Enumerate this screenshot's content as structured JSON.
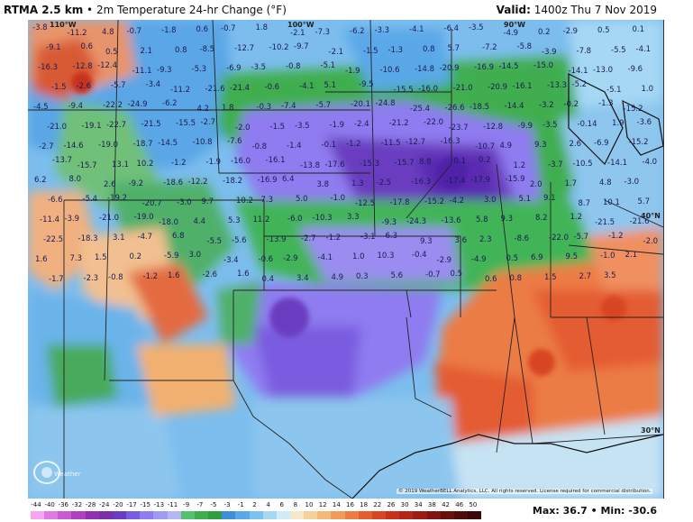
{
  "header": {
    "product": "RTMA 2.5 km",
    "separator": " • ",
    "field": "2m Temperature 24-hr Change (°F)",
    "valid_label": "Valid:",
    "valid_time": "1400z Thu 7 Nov 2019"
  },
  "footer": {
    "copyright": "© 2019 WeatherBELL Analytics, LLC. All rights reserved. License required for commercial distribution.",
    "max_label": "Max:",
    "max_value": "36.7",
    "min_label": "Min:",
    "min_value": "-30.6",
    "logo_text": "WeatherBELL"
  },
  "scale": {
    "ticks": [
      "-44",
      "-40",
      "-36",
      "-32",
      "-28",
      "-24",
      "-20",
      "-17",
      "-15",
      "-13",
      "-11",
      "-9",
      "-7",
      "-5",
      "-3",
      "-1",
      "2",
      "4",
      "6",
      "8",
      "10",
      "12",
      "14",
      "16",
      "18",
      "22",
      "26",
      "30",
      "34",
      "38",
      "42",
      "46",
      "50"
    ],
    "colors": [
      "#f6a6f0",
      "#e07ae0",
      "#c85bd0",
      "#b040c0",
      "#9030b0",
      "#7b2fa8",
      "#6a3cc0",
      "#7a5ce0",
      "#8f7cf0",
      "#a09af0",
      "#b4b6f2",
      "#55c070",
      "#3fae4f",
      "#2f9e40",
      "#3d8fd8",
      "#5aa8e8",
      "#7cc2f0",
      "#a6d8f4",
      "#d0ecf8",
      "#f4e8c8",
      "#f6d29a",
      "#f4b878",
      "#f19a5a",
      "#ec7c44",
      "#e45c30",
      "#d84424",
      "#c8301c",
      "#b42418",
      "#9a1c14",
      "#801410",
      "#68100c",
      "#500c08",
      "#3a0806"
    ]
  },
  "map": {
    "longitude_labels": [
      "110°W",
      "100°W",
      "90°W"
    ],
    "latitude_labels": [
      "40°N",
      "30°N"
    ],
    "values": [
      "-3.8",
      "-11.2",
      "4.8",
      "-0.7",
      "-1.8",
      "0.6",
      "-0.7",
      "1.8",
      "-2.1",
      "-7.3",
      "-6.2",
      "-3.3",
      "-4.1",
      "-6.4",
      "-3.5",
      "-4.9",
      "0.2",
      "-2.9",
      "0.5",
      "0.1",
      "-9.1",
      "0.6",
      "0.5",
      "2.1",
      "0.8",
      "-8.5",
      "-12.7",
      "-10.2",
      "-9.7",
      "-2.1",
      "-1.5",
      "-1.3",
      "0.8",
      "5.7",
      "-7.2",
      "-5.8",
      "-3.9",
      "-7.8",
      "-5.5",
      "-4.1",
      "-16.3",
      "-12.8",
      "-12.4",
      "-11.1",
      "-9.3",
      "-5.3",
      "-6.9",
      "-3.5",
      "-0.8",
      "-5.1",
      "-1.9",
      "-10.6",
      "-14.8",
      "-20.9",
      "-16.9",
      "-14.5",
      "-15.0",
      "-14.1",
      "-13.0",
      "-9.6",
      "-1.5",
      "-2.6",
      "-5.7",
      "-3.4",
      "-11.2",
      "-21.6",
      "-21.4",
      "-0.6",
      "-4.1",
      "5.1",
      "-9.5",
      "-15.5",
      "-16.0",
      "-21.0",
      "-20.9",
      "-16.1",
      "-13.3",
      "-5.2",
      "-5.1",
      "1.0",
      "-4.5",
      "-9.4",
      "-22.2",
      "-24.9",
      "-6.2",
      "4.2",
      "1.8",
      "-0.3",
      "-7.4",
      "-5.7",
      "-20.1",
      "-24.8",
      "-25.4",
      "-26.6",
      "-18.5",
      "-14.4",
      "-3.2",
      "-0.2",
      "-1.3",
      "-15.2",
      "-21.0",
      "-19.1",
      "-22.7",
      "-21.5",
      "-15.5",
      "-2.7",
      "-2.0",
      "-1.5",
      "-3.5",
      "-1.9",
      "-2.4",
      "-21.2",
      "-22.0",
      "-23.7",
      "-12.8",
      "-9.9",
      "-3.5",
      "-0.14",
      "1.9",
      "-3.6",
      "-2.7",
      "-14.6",
      "-19.0",
      "-18.7",
      "-14.5",
      "-10.8",
      "-7.6",
      "-0.8",
      "-1.4",
      "-0.1",
      "-1.2",
      "-11.5",
      "-12.7",
      "-16.3",
      "-10.7",
      "4.9",
      "9.3",
      "2.6",
      "-6.9",
      "-15.2",
      "-13.7",
      "-15.7",
      "13.1",
      "10.2",
      "-1.2",
      "-1.9",
      "-16.0",
      "-16.1",
      "-13.8",
      "-17.6",
      "-15.3",
      "-15.7",
      "8.8",
      "0.1",
      "0.2",
      "1.2",
      "-3.7",
      "-10.5",
      "-14.1",
      "-4.0",
      "6.2",
      "8.0",
      "2.6",
      "-9.2",
      "-18.6",
      "-12.2",
      "-18.2",
      "-16.9",
      "6.4",
      "3.8",
      "1.3",
      "-2.5",
      "-16.3",
      "-17.4",
      "-17.9",
      "-15.9",
      "2.0",
      "1.7",
      "4.8",
      "-3.0",
      "-6.6",
      "-5.4",
      "-19.2",
      "-20.7",
      "-3.0",
      "9.7",
      "10.2",
      "7.3",
      "5.0",
      "-1.0",
      "-12.5",
      "-17.8",
      "-15.2",
      "-4.2",
      "3.0",
      "5.1",
      "9.1",
      "8.7",
      "10.1",
      "5.7",
      "-11.4",
      "-3.9",
      "-21.0",
      "-19.0",
      "-18.0",
      "4.4",
      "5.3",
      "11.2",
      "-6.0",
      "-10.3",
      "3.3",
      "-9.3",
      "-24.3",
      "-13.6",
      "5.8",
      "9.3",
      "8.2",
      "1.2",
      "-21.5",
      "-21.6",
      "-22.5",
      "-18.3",
      "3.1",
      "-4.7",
      "6.8",
      "-5.5",
      "-5.6",
      "-13.9",
      "-2.7",
      "-1.2",
      "-3.1",
      "6.3",
      "9.3",
      "3.6",
      "2.3",
      "-8.6",
      "-22.0",
      "-5.7",
      "-1.2",
      "-2.0",
      "1.6",
      "7.3",
      "1.5",
      "0.2",
      "-5.9",
      "3.0",
      "-3.4",
      "-0.6",
      "-2.9",
      "-4.1",
      "1.0",
      "10.3",
      "-0.4",
      "-2.9",
      "-4.9",
      "0.5",
      "6.9",
      "9.5",
      "-1.0",
      "2.1",
      "-1.7",
      "-2.3",
      "-0.8",
      "-1.2",
      "1.6",
      "-2.6",
      "1.6",
      "0.4",
      "3.4",
      "4.9",
      "0.3",
      "5.6",
      "-0.7",
      "0.5",
      "0.6",
      "0.8",
      "1.5",
      "2.7",
      "3.5"
    ]
  }
}
